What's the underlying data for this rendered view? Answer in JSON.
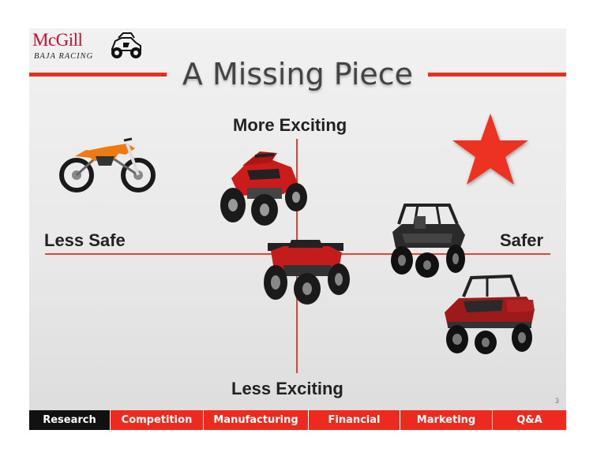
{
  "logo": {
    "name": "McGill",
    "subtitle": "BAJA RACING"
  },
  "title": "A Missing Piece",
  "axes": {
    "top": "More Exciting",
    "bottom": "Less Exciting",
    "left": "Less Safe",
    "right": "Safer"
  },
  "colors": {
    "accent": "#ee2a1f",
    "active_tab": "#111111",
    "star": "#ee3322"
  },
  "page_number": "3",
  "nav": {
    "items": [
      {
        "label": "Research",
        "active": true
      },
      {
        "label": "Competition",
        "active": false
      },
      {
        "label": "Manufacturing",
        "active": false
      },
      {
        "label": "Financial",
        "active": false
      },
      {
        "label": "Marketing",
        "active": false
      },
      {
        "label": "Q&A",
        "active": false
      }
    ]
  }
}
